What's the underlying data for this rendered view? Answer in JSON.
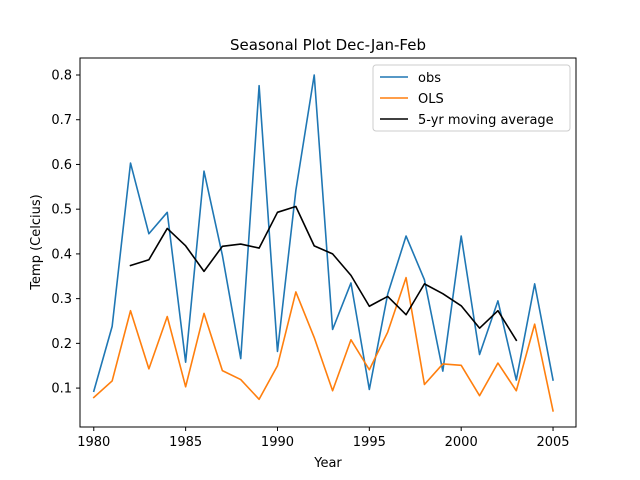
{
  "chart_data": {
    "type": "line",
    "title": "Seasonal Plot Dec-Jan-Feb",
    "xlabel": "Year",
    "ylabel": "Temp (Celcius)",
    "xlim": [
      1979.25,
      2006.25
    ],
    "ylim": [
      0.013,
      0.838
    ],
    "xticks": [
      1980,
      1985,
      1990,
      1995,
      2000,
      2005
    ],
    "xtick_labels": [
      "1980",
      "1985",
      "1990",
      "1995",
      "2000",
      "2005"
    ],
    "yticks": [
      0.1,
      0.2,
      0.3,
      0.4,
      0.5,
      0.6,
      0.7,
      0.8
    ],
    "ytick_labels": [
      "0.1",
      "0.2",
      "0.3",
      "0.4",
      "0.5",
      "0.6",
      "0.7",
      "0.8"
    ],
    "grid": false,
    "legend_position": "top-right",
    "series": [
      {
        "name": "obs",
        "color": "#1f77b4",
        "x": [
          1980,
          1981,
          1982,
          1983,
          1984,
          1985,
          1986,
          1987,
          1988,
          1989,
          1990,
          1991,
          1992,
          1993,
          1994,
          1995,
          1996,
          1997,
          1998,
          1999,
          2000,
          2001,
          2002,
          2003,
          2004,
          2005
        ],
        "values": [
          0.093,
          0.238,
          0.603,
          0.445,
          0.493,
          0.158,
          0.585,
          0.397,
          0.166,
          0.776,
          0.182,
          0.542,
          0.8,
          0.231,
          0.335,
          0.097,
          0.31,
          0.44,
          0.342,
          0.138,
          0.44,
          0.175,
          0.295,
          0.118,
          0.333,
          0.118
        ]
      },
      {
        "name": "OLS",
        "color": "#ff7f0e",
        "x": [
          1980,
          1981,
          1982,
          1983,
          1984,
          1985,
          1986,
          1987,
          1988,
          1989,
          1990,
          1991,
          1992,
          1993,
          1994,
          1995,
          1996,
          1997,
          1998,
          1999,
          2000,
          2001,
          2002,
          2003,
          2004,
          2005
        ],
        "values": [
          0.079,
          0.116,
          0.273,
          0.143,
          0.26,
          0.103,
          0.267,
          0.139,
          0.119,
          0.075,
          0.15,
          0.315,
          0.213,
          0.094,
          0.208,
          0.141,
          0.225,
          0.347,
          0.108,
          0.154,
          0.151,
          0.083,
          0.156,
          0.094,
          0.243,
          0.049
        ]
      },
      {
        "name": "5-yr moving average",
        "color": "#000000",
        "x": [
          1982,
          1983,
          1984,
          1985,
          1986,
          1987,
          1988,
          1989,
          1990,
          1991,
          1992,
          1993,
          1994,
          1995,
          1996,
          1997,
          1998,
          1999,
          2000,
          2001,
          2002,
          2003
        ],
        "values": [
          0.374,
          0.387,
          0.457,
          0.418,
          0.361,
          0.417,
          0.422,
          0.413,
          0.493,
          0.506,
          0.418,
          0.4,
          0.352,
          0.283,
          0.305,
          0.264,
          0.333,
          0.311,
          0.284,
          0.234,
          0.273,
          0.207
        ]
      }
    ]
  }
}
